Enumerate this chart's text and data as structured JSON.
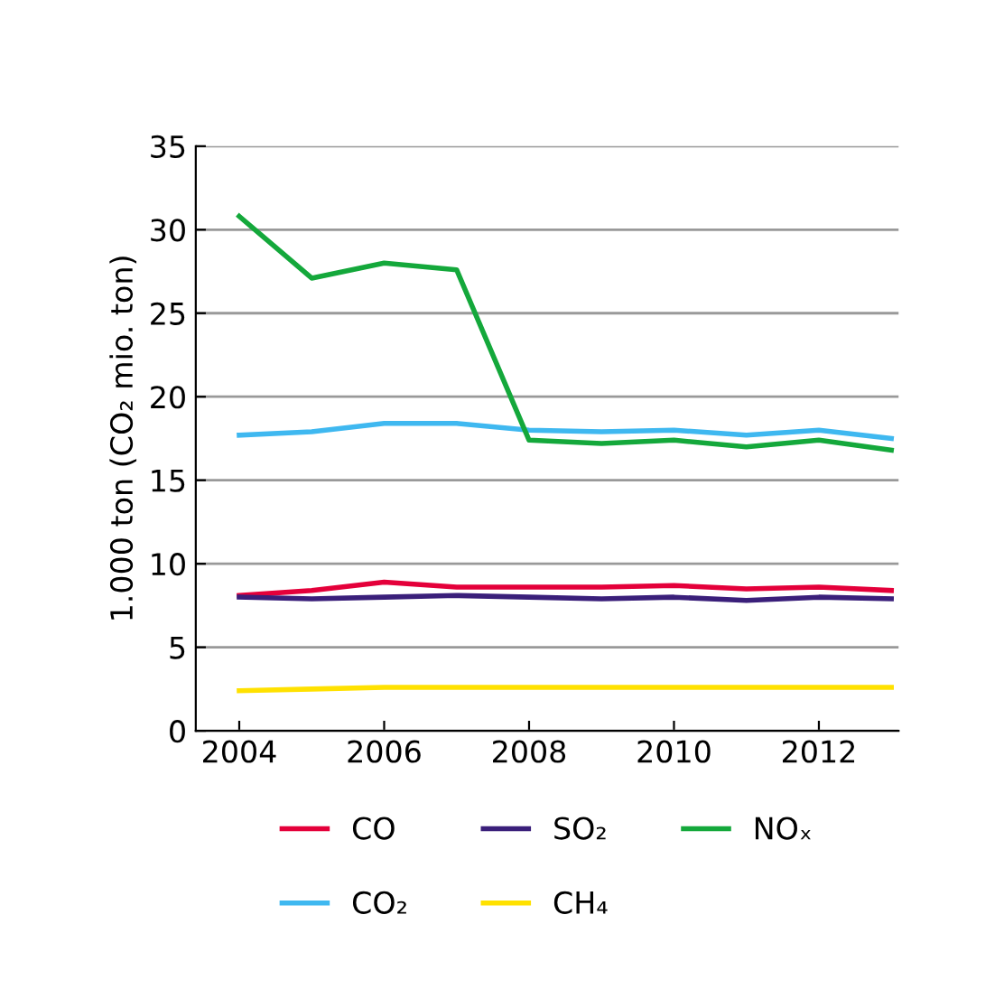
{
  "chart_data": {
    "type": "line",
    "ylabel": "1.000 ton (CO₂ mio. ton)",
    "x": [
      2004,
      2005,
      2006,
      2007,
      2008,
      2009,
      2010,
      2011,
      2012,
      2013
    ],
    "series": [
      {
        "name": "CO",
        "color": "#e4003a",
        "values": [
          8.1,
          8.4,
          8.9,
          8.6,
          8.6,
          8.6,
          8.7,
          8.5,
          8.6,
          8.4
        ]
      },
      {
        "name": "CO₂",
        "color": "#3fb8f0",
        "values": [
          17.7,
          17.9,
          18.4,
          18.4,
          18.0,
          17.9,
          18.0,
          17.7,
          18.0,
          17.5
        ]
      },
      {
        "name": "SO₂",
        "color": "#3a1f7a",
        "values": [
          8.0,
          7.9,
          8.0,
          8.1,
          8.0,
          7.9,
          8.0,
          7.8,
          8.0,
          7.9
        ]
      },
      {
        "name": "CH₄",
        "color": "#ffe100",
        "values": [
          2.4,
          2.5,
          2.6,
          2.6,
          2.6,
          2.6,
          2.6,
          2.6,
          2.6,
          2.6
        ]
      },
      {
        "name": "NOₓ",
        "color": "#14a83b",
        "values": [
          30.8,
          27.1,
          28.0,
          27.6,
          17.4,
          17.2,
          17.4,
          17.0,
          17.4,
          16.8
        ]
      }
    ],
    "xlim": [
      2003.4,
      2013.1
    ],
    "xticks": [
      2004,
      2006,
      2008,
      2010,
      2012
    ],
    "ylim": [
      0,
      35
    ],
    "yticks": [
      0,
      5,
      10,
      15,
      20,
      25,
      30,
      35
    ],
    "grid": "y",
    "legend": "bottom",
    "marker": "none",
    "line_style": "solid"
  }
}
